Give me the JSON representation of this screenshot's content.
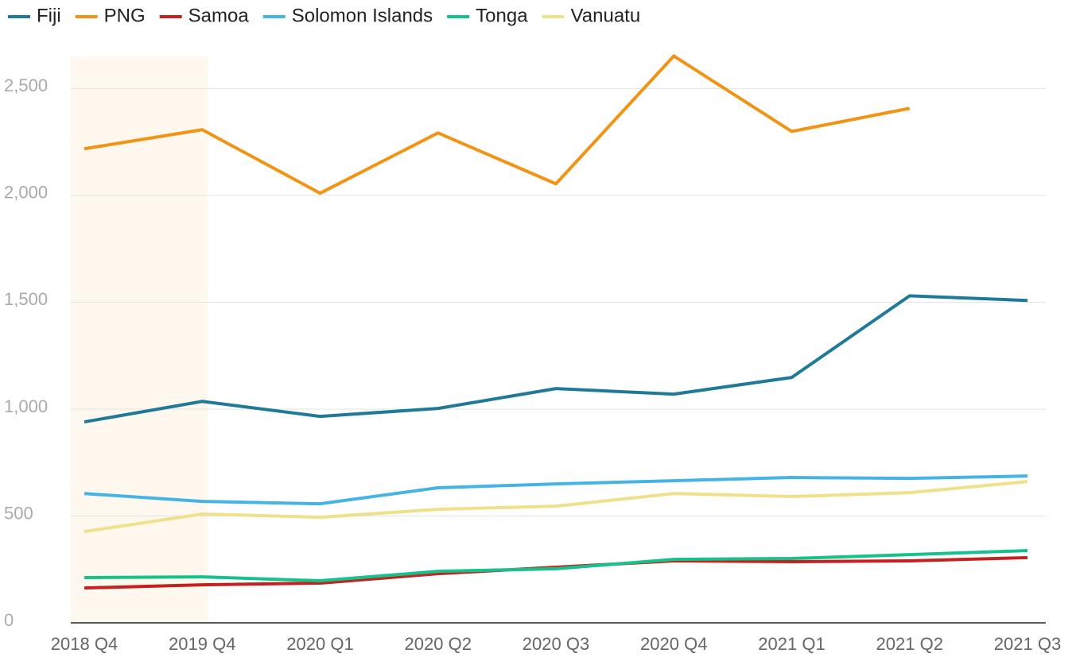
{
  "chart_data": {
    "type": "line",
    "categories": [
      "2018 Q4",
      "2019 Q4",
      "2020 Q1",
      "2020 Q2",
      "2020 Q3",
      "2020 Q4",
      "2021 Q1",
      "2021 Q2",
      "2021 Q3"
    ],
    "series": [
      {
        "name": "Fiji",
        "color": "#1f7a99",
        "values": [
          940,
          1036,
          966,
          1003,
          1096,
          1070,
          1148,
          1530,
          1508
        ]
      },
      {
        "name": "PNG",
        "color": "#f39313",
        "values": [
          2218,
          2307,
          2010,
          2292,
          2054,
          2652,
          2299,
          2407,
          null
        ]
      },
      {
        "name": "Samoa",
        "color": "#c4211f",
        "values": [
          163,
          178,
          186,
          230,
          260,
          290,
          286,
          290,
          305
        ]
      },
      {
        "name": "Solomon Islands",
        "color": "#45b4e5",
        "values": [
          605,
          568,
          557,
          632,
          650,
          665,
          680,
          676,
          687
        ]
      },
      {
        "name": "Tonga",
        "color": "#16c28b",
        "values": [
          212,
          215,
          197,
          241,
          253,
          297,
          301,
          319,
          338
        ]
      },
      {
        "name": "Vanuatu",
        "color": "#f0e08a",
        "values": [
          427,
          509,
          494,
          531,
          546,
          605,
          591,
          609,
          661
        ]
      }
    ],
    "ylim": [
      0,
      2650
    ],
    "yticks": [
      0,
      {
        "value": 500,
        "label": "500"
      },
      {
        "value": 1000,
        "label": "1,000"
      },
      {
        "value": 1500,
        "label": "1,500"
      },
      {
        "value": 2000,
        "label": "2,000"
      },
      {
        "value": 2500,
        "label": "2,500"
      }
    ],
    "grid": true,
    "legend": "top"
  }
}
